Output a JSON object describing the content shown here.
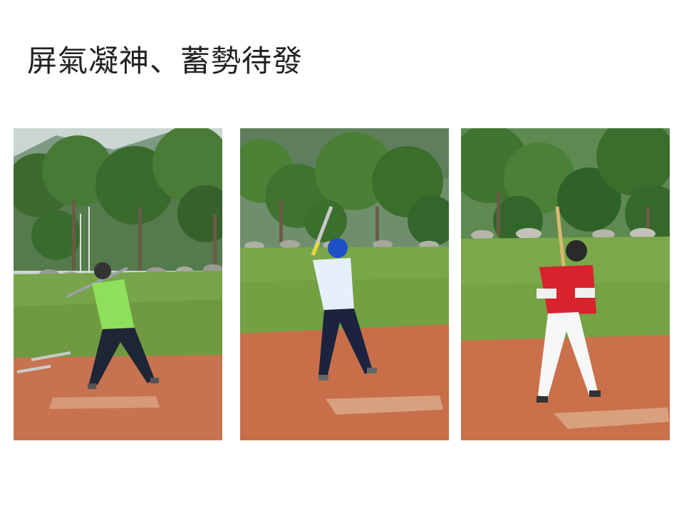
{
  "slide": {
    "title": "屏氣凝神、蓄勢待發"
  },
  "photos": [
    {
      "subject": "batter-green-shirt"
    },
    {
      "subject": "batter-blue-helmet"
    },
    {
      "subject": "batter-red-jersey"
    }
  ],
  "colors": {
    "sky": "#b9c9c3",
    "mountain": "#6f8f73",
    "tree": "#3f6b32",
    "grass": "#79a447",
    "dirt": "#c7704a"
  }
}
